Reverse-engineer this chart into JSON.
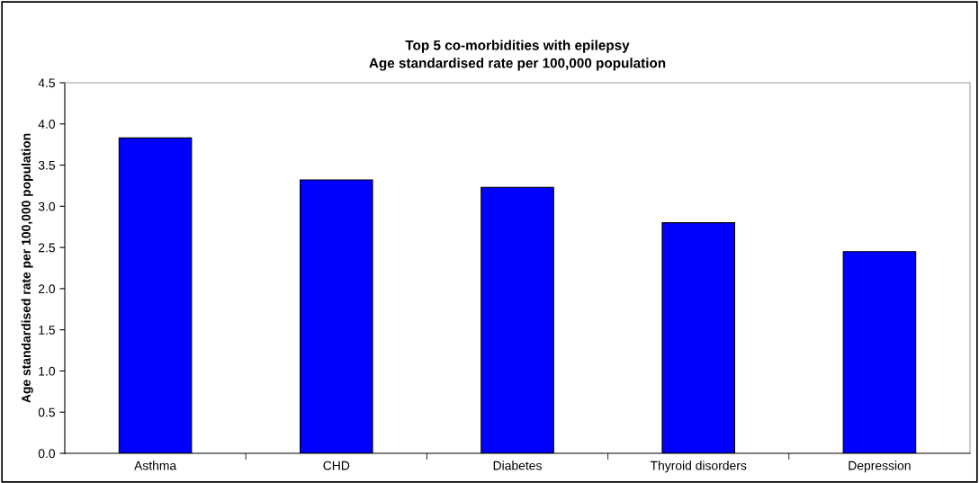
{
  "chart_data": {
    "type": "bar",
    "title": "Top 5 co-morbidities with epilepsy\nAge standardised rate per 100,000 population",
    "ylabel": "Age standardised rate per 100,000 population",
    "categories": [
      "Asthma",
      "CHD",
      "Diabetes",
      "Thyroid disorders",
      "Depression"
    ],
    "values": [
      3.83,
      3.32,
      3.23,
      2.8,
      2.45
    ],
    "color": "#0000ff",
    "ylim": [
      0,
      4.5
    ],
    "yticks": [
      {
        "value": 0,
        "label": "0.0"
      },
      {
        "value": 0.5,
        "label": "0.5"
      },
      {
        "value": 1,
        "label": "1.0"
      },
      {
        "value": 1.5,
        "label": "1.5"
      },
      {
        "value": 2,
        "label": "2.0"
      },
      {
        "value": 2.5,
        "label": "2.5"
      },
      {
        "value": 3,
        "label": "3.0"
      },
      {
        "value": 3.5,
        "label": "3.5"
      },
      {
        "value": 4,
        "label": "4.0"
      },
      {
        "value": 4.5,
        "label": "4.5"
      }
    ],
    "grid": false,
    "legend": false
  }
}
